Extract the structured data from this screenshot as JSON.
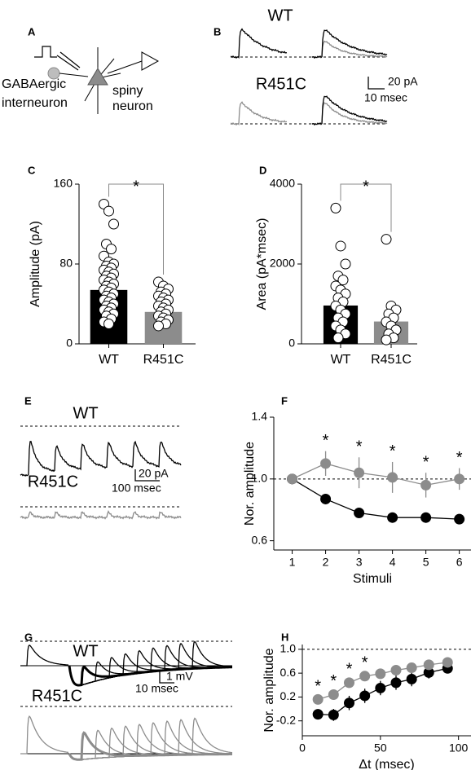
{
  "figure": {
    "A": {
      "label": "A",
      "texts": [
        "GABAergic",
        "interneuron",
        "spiny",
        "neuron"
      ]
    },
    "B": {
      "label": "B",
      "rows": [
        "WT",
        "R451C"
      ],
      "scale": [
        "20 pA",
        "10 msec"
      ]
    },
    "E": {
      "label": "E",
      "rows": [
        "WT",
        "R451C"
      ],
      "scale": [
        "20 pA",
        "100 msec"
      ]
    },
    "G": {
      "label": "G",
      "rows": [
        "WT",
        "R451C"
      ],
      "scale": [
        "1 mV",
        "10 msec"
      ]
    }
  },
  "chart_data": [
    {
      "type": "bar",
      "label": "C",
      "ylabel": "Amplitude (pA)",
      "categories": [
        "WT",
        "R451C"
      ],
      "values": [
        54,
        32
      ],
      "colors": [
        "#000000",
        "#8c8c8c"
      ],
      "points": [
        [
          140,
          133,
          120,
          100,
          95,
          88,
          82,
          80,
          78,
          76,
          74,
          72,
          70,
          68,
          66,
          64,
          62,
          60,
          58,
          56,
          54,
          52,
          50,
          48,
          46,
          44,
          42,
          40,
          38,
          36,
          34,
          32,
          30,
          28,
          25,
          22,
          20
        ],
        [
          62,
          58,
          55,
          52,
          50,
          48,
          46,
          44,
          42,
          40,
          38,
          36,
          34,
          32,
          30,
          28,
          26,
          24,
          22,
          20,
          18
        ]
      ],
      "ylim": [
        0,
        160
      ],
      "yticks": [
        0,
        80,
        160
      ],
      "significance": "*"
    },
    {
      "type": "bar",
      "label": "D",
      "ylabel": "Area (pA*msec)",
      "categories": [
        "WT",
        "R451C"
      ],
      "values": [
        960,
        560
      ],
      "colors": [
        "#000000",
        "#8c8c8c"
      ],
      "points": [
        [
          3400,
          2450,
          2000,
          1700,
          1600,
          1450,
          1350,
          1250,
          1150,
          1050,
          950,
          850,
          750,
          650,
          550,
          450,
          350,
          250,
          150
        ],
        [
          2620,
          950,
          850,
          750,
          650,
          550,
          450,
          350,
          250,
          150,
          100
        ]
      ],
      "ylim": [
        0,
        4000
      ],
      "yticks": [
        0,
        2000,
        4000
      ],
      "significance": "*"
    },
    {
      "type": "line",
      "label": "F",
      "xlabel": "Stimuli",
      "ylabel": "Nor. amplitude",
      "x": [
        1,
        2,
        3,
        4,
        5,
        6
      ],
      "series": [
        {
          "color": "#000000",
          "values": [
            1.0,
            0.87,
            0.78,
            0.75,
            0.75,
            0.74
          ],
          "errors": [
            0,
            0.02,
            0.03,
            0.03,
            0.02,
            0.03
          ]
        },
        {
          "color": "#8c8c8c",
          "values": [
            1.0,
            1.1,
            1.04,
            1.01,
            0.96,
            1.0
          ],
          "errors": [
            0,
            0.08,
            0.1,
            0.1,
            0.08,
            0.07
          ]
        }
      ],
      "xlim": [
        0.45,
        6.35
      ],
      "ylim": [
        0.54,
        1.4
      ],
      "xticks": [
        1,
        2,
        3,
        4,
        5,
        6
      ],
      "yticks": [
        0.6,
        {
          "value": 1,
          "label": "1.0"
        },
        1.4
      ],
      "reference_line": 1,
      "annotations": [
        {
          "x": 2,
          "text": "*"
        },
        {
          "x": 3,
          "text": "*"
        },
        {
          "x": 4,
          "text": "*"
        },
        {
          "x": 5,
          "text": "*"
        },
        {
          "x": 6,
          "text": "*"
        }
      ]
    },
    {
      "type": "line",
      "label": "H",
      "xlabel": "Δt (msec)",
      "ylabel": "Nor. amplitude",
      "x": [
        10,
        20,
        30,
        40,
        50,
        60,
        70,
        81,
        93
      ],
      "series": [
        {
          "color": "#000000",
          "values": [
            -0.09,
            -0.1,
            0.1,
            0.22,
            0.35,
            0.44,
            0.5,
            0.61,
            0.68
          ],
          "errors": [
            0.08,
            0.1,
            0.12,
            0.12,
            0.12,
            0.12,
            0.12,
            0.1,
            0.08
          ]
        },
        {
          "color": "#8c8c8c",
          "values": [
            0.16,
            0.24,
            0.44,
            0.55,
            0.59,
            0.65,
            0.69,
            0.74,
            0.78
          ],
          "errors": [
            0.04,
            0.05,
            0.05,
            0.05,
            0.04,
            0.04,
            0.04,
            0.04,
            0.03
          ]
        }
      ],
      "xlim": [
        0,
        108
      ],
      "ylim": [
        -0.45,
        1.08
      ],
      "xticks": [
        0,
        50,
        100
      ],
      "yticks": [
        -0.2,
        0.2,
        0.6,
        {
          "value": 1,
          "label": "1.0"
        }
      ],
      "reference_line": 1,
      "annotations": [
        {
          "x": 10,
          "text": "*"
        },
        {
          "x": 20,
          "text": "*"
        },
        {
          "x": 30,
          "text": "*"
        },
        {
          "x": 40,
          "text": "*"
        }
      ]
    }
  ]
}
